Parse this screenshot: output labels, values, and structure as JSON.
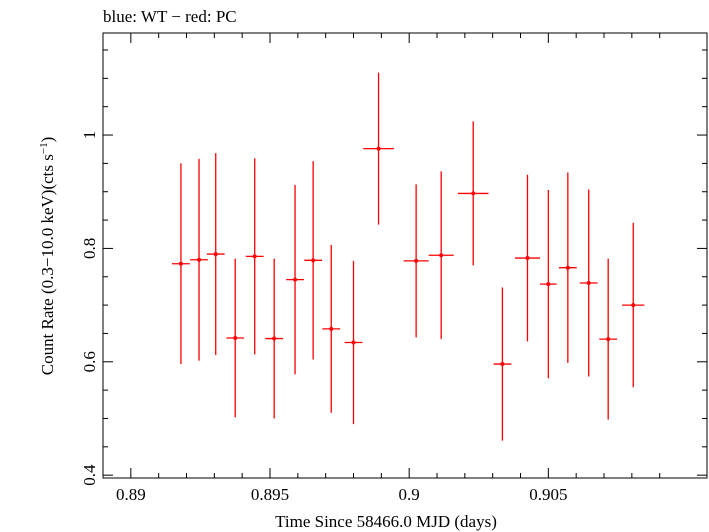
{
  "chart_data": {
    "type": "scatter",
    "title": "blue: WT − red: PC",
    "xlabel": "Time Since 58466.0 MJD (days)",
    "ylabel_main": "Count Rate (0.3−10.0 keV)(cts s",
    "ylabel_sup": "−1",
    "ylabel_end": ")",
    "xlim": [
      0.889,
      0.9107
    ],
    "ylim": [
      0.395,
      1.18
    ],
    "x_ticks": [
      {
        "value": 0.89,
        "label": "0.89"
      },
      {
        "value": 0.895,
        "label": "0.895"
      },
      {
        "value": 0.9,
        "label": "0.9"
      },
      {
        "value": 0.905,
        "label": "0.905"
      }
    ],
    "y_ticks": [
      {
        "value": 0.4,
        "label": "0.4"
      },
      {
        "value": 0.6,
        "label": "0.6"
      },
      {
        "value": 0.8,
        "label": "0.8"
      },
      {
        "value": 1.0,
        "label": "1"
      }
    ],
    "series": [
      {
        "color": "#ff0000",
        "points": [
          {
            "x": 0.8918,
            "xerr": 0.00032,
            "y": 0.773,
            "yerr": 0.177
          },
          {
            "x": 0.89245,
            "xerr": 0.00032,
            "y": 0.78,
            "yerr": 0.178
          },
          {
            "x": 0.89305,
            "xerr": 0.00032,
            "y": 0.79,
            "yerr": 0.178
          },
          {
            "x": 0.89375,
            "xerr": 0.00032,
            "y": 0.642,
            "yerr": 0.14
          },
          {
            "x": 0.89445,
            "xerr": 0.00032,
            "y": 0.786,
            "yerr": 0.173
          },
          {
            "x": 0.89515,
            "xerr": 0.00032,
            "y": 0.641,
            "yerr": 0.141
          },
          {
            "x": 0.8959,
            "xerr": 0.00032,
            "y": 0.745,
            "yerr": 0.167
          },
          {
            "x": 0.89655,
            "xerr": 0.00032,
            "y": 0.779,
            "yerr": 0.175
          },
          {
            "x": 0.8972,
            "xerr": 0.00032,
            "y": 0.658,
            "yerr": 0.148
          },
          {
            "x": 0.898,
            "xerr": 0.00032,
            "y": 0.634,
            "yerr": 0.144
          },
          {
            "x": 0.8989,
            "xerr": 0.00055,
            "y": 0.976,
            "yerr": 0.134
          },
          {
            "x": 0.90025,
            "xerr": 0.00045,
            "y": 0.778,
            "yerr": 0.135
          },
          {
            "x": 0.90115,
            "xerr": 0.00045,
            "y": 0.788,
            "yerr": 0.148
          },
          {
            "x": 0.9023,
            "xerr": 0.00055,
            "y": 0.897,
            "yerr": 0.127
          },
          {
            "x": 0.90335,
            "xerr": 0.00032,
            "y": 0.596,
            "yerr": 0.135
          },
          {
            "x": 0.90425,
            "xerr": 0.00045,
            "y": 0.783,
            "yerr": 0.147
          },
          {
            "x": 0.905,
            "xerr": 0.0003,
            "y": 0.737,
            "yerr": 0.166
          },
          {
            "x": 0.9057,
            "xerr": 0.00032,
            "y": 0.766,
            "yerr": 0.168
          },
          {
            "x": 0.90645,
            "xerr": 0.00032,
            "y": 0.739,
            "yerr": 0.165
          },
          {
            "x": 0.90715,
            "xerr": 0.00032,
            "y": 0.64,
            "yerr": 0.142
          },
          {
            "x": 0.90805,
            "xerr": 0.0004,
            "y": 0.7,
            "yerr": 0.145
          }
        ]
      }
    ]
  }
}
